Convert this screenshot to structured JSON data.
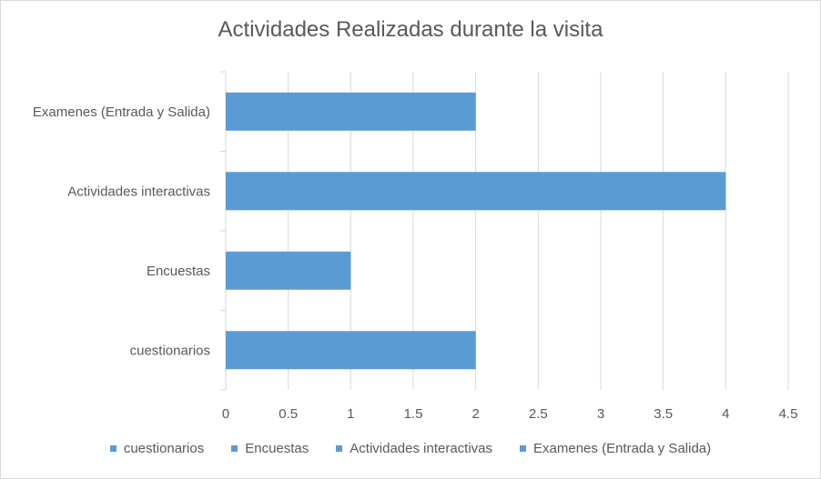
{
  "chart_data": {
    "type": "bar",
    "orientation": "horizontal",
    "title": "Actividades Realizadas durante la visita",
    "categories": [
      "cuestionarios",
      "Encuestas",
      "Actividades interactivas",
      "Examenes (Entrada y Salida)"
    ],
    "values": [
      2,
      1,
      4,
      2
    ],
    "xlim": [
      0,
      4.5
    ],
    "xticks": [
      0,
      0.5,
      1,
      1.5,
      2,
      2.5,
      3,
      3.5,
      4,
      4.5
    ],
    "grid": true,
    "legend_position": "bottom",
    "legend": [
      "cuestionarios",
      "Encuestas",
      "Actividades interactivas",
      "Examenes (Entrada y Salida)"
    ],
    "colors": {
      "bar": "#5b9bd5",
      "grid": "#d9d9d9",
      "text": "#595959"
    }
  }
}
